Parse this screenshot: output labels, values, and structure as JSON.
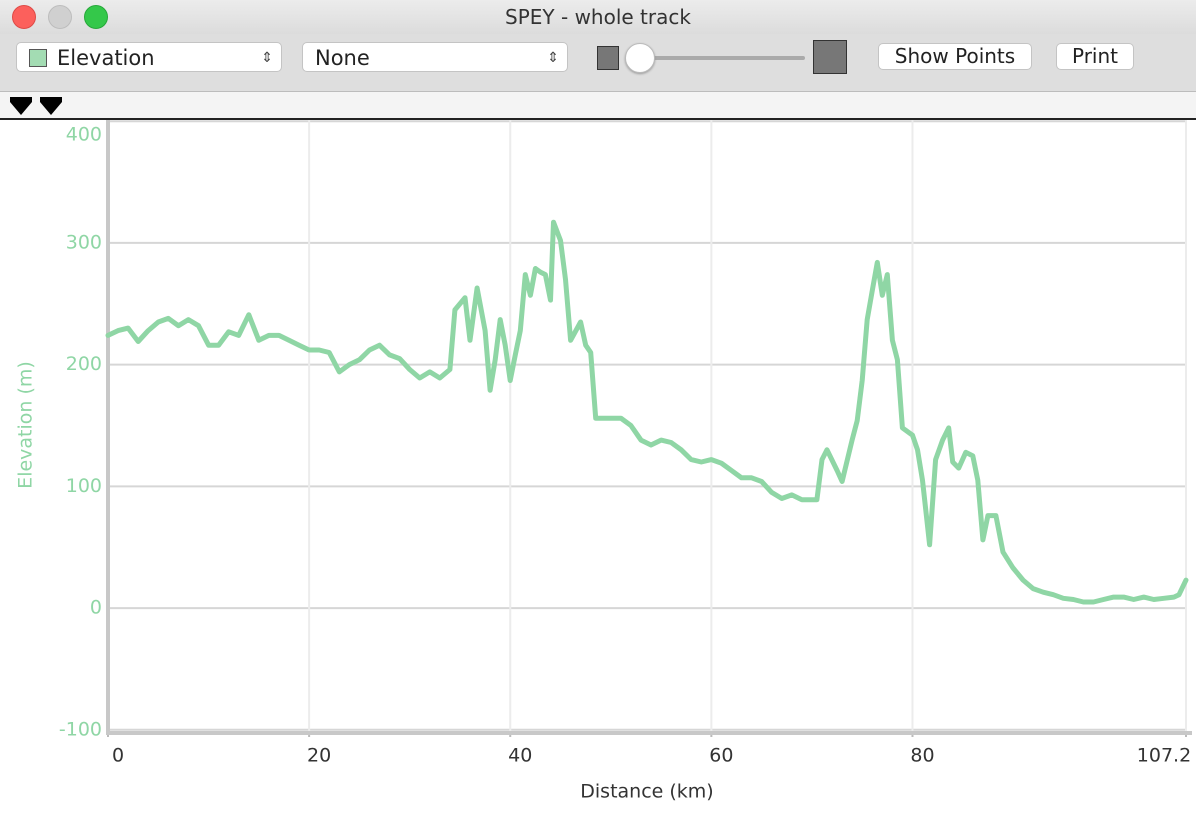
{
  "window": {
    "title": "SPEY - whole track"
  },
  "toolbar": {
    "primary_select": "Elevation",
    "secondary_select": "None",
    "show_points": "Show Points",
    "print": "Print"
  },
  "chart_data": {
    "type": "line",
    "x_label": "Distance (km)",
    "y_label": "Elevation (m)",
    "xlim": [
      0,
      107.2
    ],
    "ylim": [
      -101,
      401
    ],
    "xticks": [
      0,
      20,
      40,
      60,
      80,
      107.2
    ],
    "yticks": [
      -100,
      0,
      100,
      200,
      300,
      400
    ],
    "grid": true,
    "color": "#8fd6a5",
    "x": [
      0,
      1,
      2,
      3,
      4,
      5,
      6,
      7,
      8,
      9,
      10,
      11,
      12,
      13,
      14,
      15,
      16,
      17,
      18,
      19,
      20,
      21,
      22,
      23,
      24,
      25,
      26,
      27,
      28,
      29,
      30,
      31,
      32,
      33,
      34,
      34.5,
      35.5,
      36,
      36.7,
      37.5,
      38,
      38.5,
      39,
      39.5,
      40,
      40.5,
      41,
      41.5,
      42,
      42.5,
      43,
      43.5,
      44,
      44.3,
      45,
      45.5,
      46,
      47,
      47.5,
      48,
      48.5,
      50,
      51,
      52,
      53,
      54,
      55,
      56,
      57,
      58,
      59,
      60,
      61,
      62,
      63,
      64,
      65,
      66,
      67,
      68,
      69,
      70,
      70.5,
      71,
      71.5,
      72.5,
      73,
      74,
      74.5,
      75,
      75.5,
      76,
      76.5,
      77,
      77.5,
      78,
      78.5,
      79,
      80,
      80.5,
      81,
      81.7,
      82.3,
      83,
      83.6,
      84,
      84.6,
      85.3,
      86,
      86.5,
      87,
      87.5,
      88.3,
      89,
      90,
      91,
      92,
      93,
      94,
      95,
      96,
      97,
      98,
      99,
      100,
      101,
      102,
      103,
      104,
      105,
      106,
      106.5,
      107.2
    ],
    "values": [
      224,
      228,
      230,
      219,
      228,
      235,
      238,
      232,
      237,
      232,
      216,
      216,
      227,
      224,
      241,
      220,
      224,
      224,
      220,
      216,
      212,
      212,
      210,
      194,
      200,
      204,
      212,
      216,
      208,
      205,
      196,
      189,
      194,
      189,
      196,
      245,
      255,
      220,
      263,
      228,
      179,
      204,
      237,
      216,
      187,
      208,
      228,
      274,
      257,
      279,
      276,
      274,
      253,
      317,
      302,
      270,
      220,
      235,
      216,
      210,
      156,
      156,
      156,
      150,
      138,
      134,
      138,
      136,
      130,
      122,
      120,
      122,
      119,
      113,
      107,
      107,
      104,
      95,
      90,
      93,
      89,
      89,
      89,
      122,
      130,
      113,
      104,
      138,
      154,
      187,
      237,
      261,
      284,
      257,
      274,
      220,
      204,
      148,
      142,
      130,
      105,
      52,
      122,
      138,
      148,
      120,
      115,
      128,
      125,
      105,
      56,
      76,
      76,
      46,
      33,
      23,
      16,
      13,
      11,
      8,
      7,
      5,
      5,
      7,
      9,
      9,
      7,
      9,
      7,
      8,
      9,
      11,
      23
    ]
  }
}
